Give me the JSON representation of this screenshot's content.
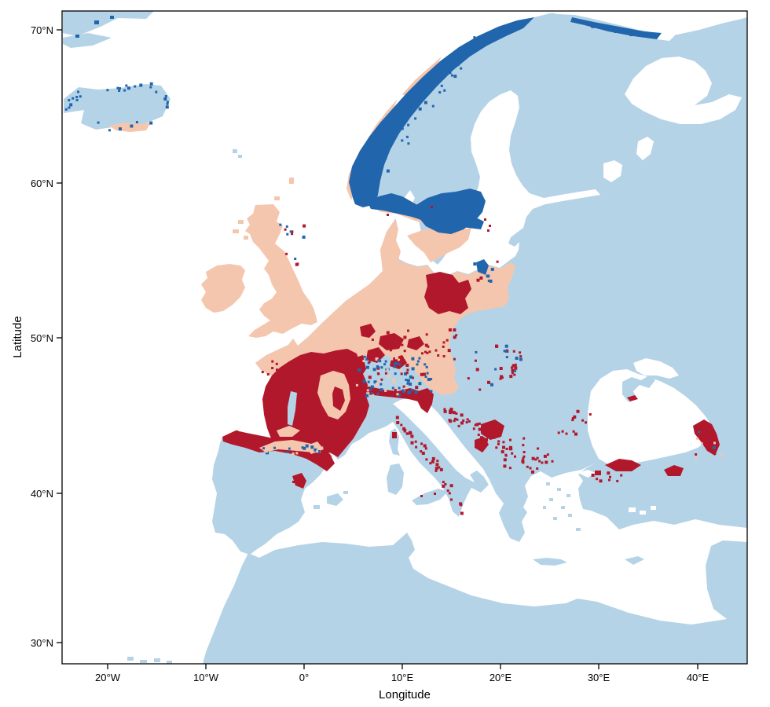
{
  "figure": {
    "kind": "species distribution / raster category map of Europe",
    "plot_background": "#ffffff"
  },
  "axes": {
    "x": {
      "title": "Longitude",
      "ticks": [
        "20°W",
        "10°W",
        "0°",
        "10°E",
        "20°E",
        "30°E",
        "40°E"
      ]
    },
    "y": {
      "title": "Latitude",
      "ticks": [
        "70°N",
        "60°N",
        "50°N",
        "40°N",
        "30°N"
      ]
    }
  },
  "map": {
    "colors": {
      "sea": "#ffffff",
      "land": "#b5d3e7",
      "pink": "#f5c6ae",
      "red": "#b2182b",
      "blue": "#2166ac",
      "frame": "#000000"
    },
    "regions": {
      "pink_cells": "British Isles, northern France, Benelux, Germany, Denmark, southern Sweden, western Poland, Norwegian coastal fringe, Pyrenees crest, Massif Central, south Iceland coast",
      "dark_red_cells": "most of France, Cantabrian coast of Spain, Valencia area, east Germany / west Poland, Istria, Apennines, Dinaric Alps, Carpathians, northern Turkey Black Sea coast, Caucasus coast",
      "dark_blue_cells": "Norwegian coast, central Sweden, Alps, Iceland fringe, Murman coast, Scottish Highlands",
      "plain_land": "light blue basemap land (Iberia interior, Italy, Balkans, eastern Europe, Turkey, North Africa)",
      "sea_fill": "white"
    }
  }
}
